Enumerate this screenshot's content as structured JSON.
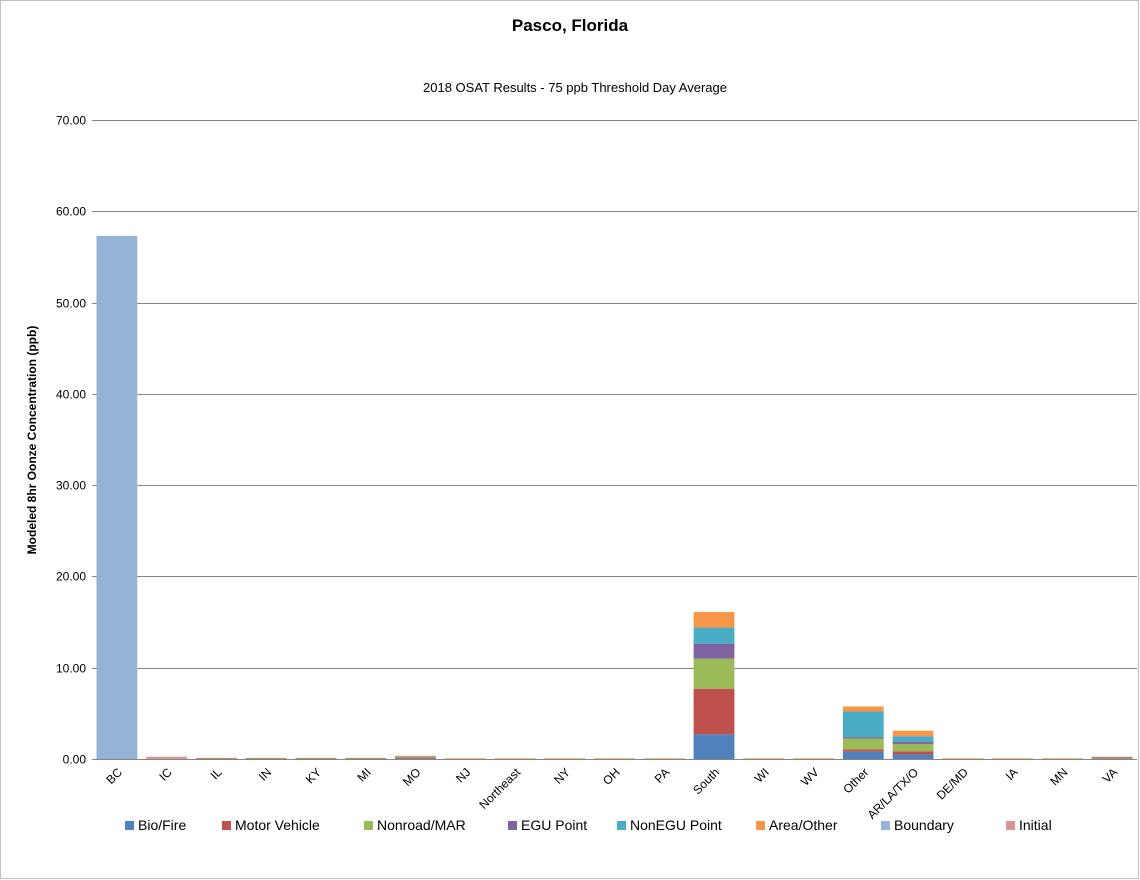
{
  "chart_data": {
    "type": "bar",
    "stacked": true,
    "title": "Pasco, Florida",
    "subtitle": "2018 OSAT Results - 75 ppb Threshold Day Average",
    "xlabel": "",
    "ylabel": "Modeled 8hr Oonze Concentration (ppb)",
    "ylim": [
      0,
      70
    ],
    "yticks": [
      "0.00",
      "10.00",
      "20.00",
      "30.00",
      "40.00",
      "50.00",
      "60.00",
      "70.00"
    ],
    "grid": true,
    "legend_position": "bottom",
    "categories": [
      "BC",
      "IC",
      "IL",
      "IN",
      "KY",
      "MI",
      "MO",
      "NJ",
      "Northeast",
      "NY",
      "OH",
      "PA",
      "South",
      "WI",
      "WV",
      "Other",
      "AR/LA/TX/O",
      "DE/MD",
      "IA",
      "MN",
      "VA"
    ],
    "series": [
      {
        "name": "Bio/Fire",
        "color": "#4f81bd",
        "values": [
          0,
          0,
          0,
          0,
          0,
          0,
          0,
          0,
          0,
          0,
          0,
          0,
          2.7,
          0,
          0,
          0.8,
          0.5,
          0,
          0,
          0,
          0
        ]
      },
      {
        "name": "Motor Vehicle",
        "color": "#c0504d",
        "values": [
          0,
          0,
          0.03,
          0.03,
          0.03,
          0.03,
          0.1,
          0.02,
          0.02,
          0.02,
          0.02,
          0.02,
          5.0,
          0.02,
          0.02,
          0.25,
          0.35,
          0.02,
          0.02,
          0.02,
          0.08
        ]
      },
      {
        "name": "Nonroad/MAR",
        "color": "#9bbb59",
        "values": [
          0,
          0,
          0.03,
          0.03,
          0.03,
          0.03,
          0.1,
          0.02,
          0.02,
          0.02,
          0.02,
          0.02,
          3.3,
          0.02,
          0.02,
          1.2,
          0.8,
          0.02,
          0.02,
          0.02,
          0.08
        ]
      },
      {
        "name": "EGU Point",
        "color": "#8064a2",
        "values": [
          0,
          0,
          0.02,
          0.02,
          0.02,
          0.02,
          0.05,
          0.01,
          0.01,
          0.01,
          0.01,
          0.01,
          1.6,
          0.01,
          0.01,
          0.15,
          0.25,
          0.01,
          0.01,
          0.01,
          0.03
        ]
      },
      {
        "name": "NonEGU Point",
        "color": "#4bacc6",
        "values": [
          0,
          0,
          0.02,
          0.02,
          0.02,
          0.02,
          0.05,
          0.01,
          0.01,
          0.01,
          0.01,
          0.01,
          1.8,
          0.01,
          0.01,
          2.8,
          0.6,
          0.01,
          0.01,
          0.01,
          0.03
        ]
      },
      {
        "name": "Area/Other",
        "color": "#f79646",
        "values": [
          0,
          0,
          0.02,
          0.02,
          0.02,
          0.02,
          0.05,
          0.01,
          0.01,
          0.01,
          0.01,
          0.01,
          1.7,
          0.01,
          0.01,
          0.55,
          0.6,
          0.01,
          0.01,
          0.01,
          0.03
        ]
      },
      {
        "name": "Boundary",
        "color": "#95b3d7",
        "values": [
          57.3,
          0,
          0,
          0,
          0,
          0,
          0,
          0,
          0,
          0,
          0,
          0,
          0,
          0,
          0,
          0,
          0,
          0,
          0,
          0,
          0
        ]
      },
      {
        "name": "Initial",
        "color": "#d99694",
        "values": [
          0,
          0.25,
          0,
          0,
          0,
          0,
          0,
          0,
          0,
          0,
          0,
          0,
          0,
          0,
          0,
          0,
          0,
          0,
          0,
          0,
          0
        ]
      }
    ]
  }
}
